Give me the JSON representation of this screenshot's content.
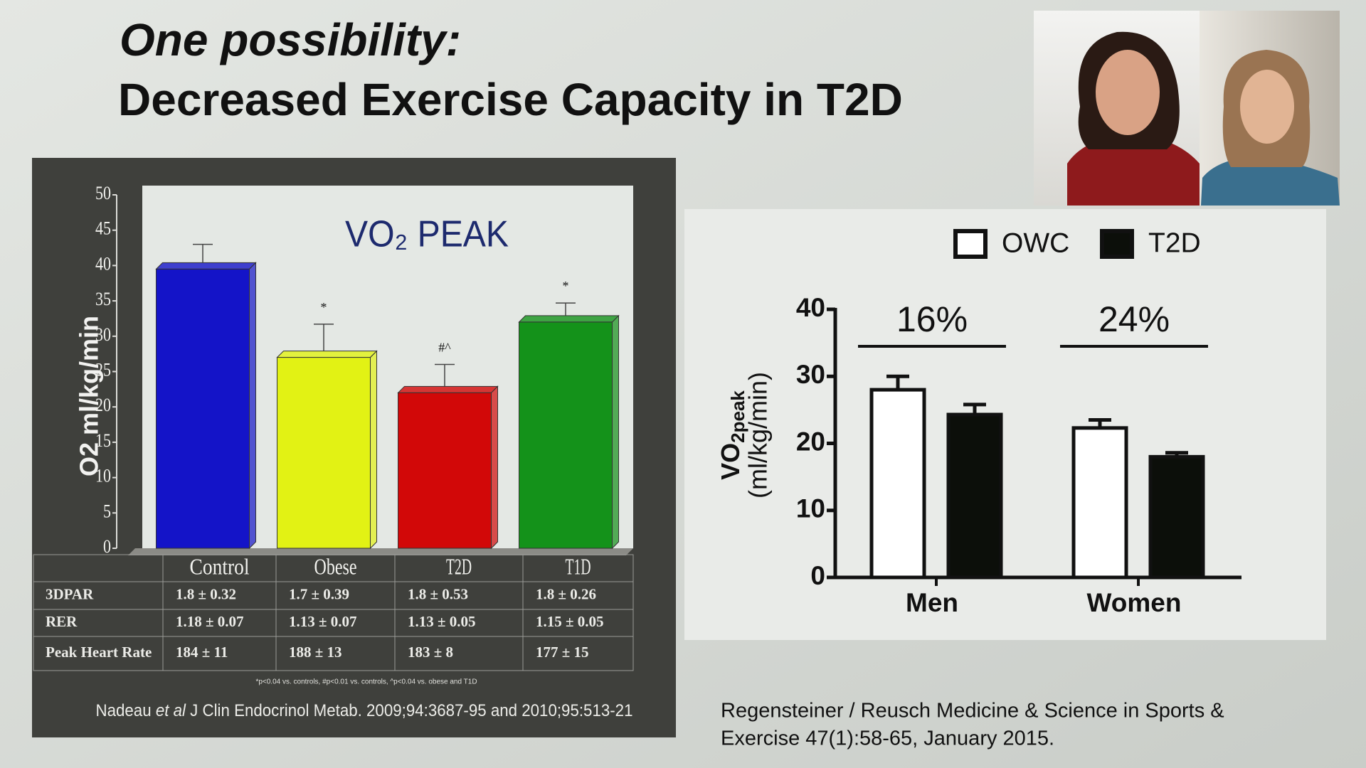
{
  "title": [
    "One possibility:",
    "Decreased Exercise Capacity in T2D"
  ],
  "chart_data": [
    {
      "type": "bar3d",
      "title": "VO₂ PEAK",
      "y_label": "O2 ml/kg/min",
      "categories": [
        "Control",
        "Obese",
        "T2D",
        "T1D"
      ],
      "values": [
        39.5,
        27,
        22,
        32
      ],
      "errors": [
        3.5,
        4.7,
        4,
        2.7
      ],
      "colors": [
        "#1414c8",
        "#e2f214",
        "#d20808",
        "#14921a"
      ],
      "annotations": [
        null,
        "*",
        "#^",
        "*"
      ],
      "ylim": [
        0,
        50
      ],
      "yticks": [
        0,
        5,
        10,
        15,
        20,
        25,
        30,
        35,
        40,
        45,
        50
      ]
    },
    {
      "type": "grouped_bar",
      "y_label": [
        "VO",
        "2peak",
        "(ml/kg/min)"
      ],
      "categories": [
        "Men",
        "Women"
      ],
      "series": [
        {
          "name": "OWC",
          "color": "#ffffff",
          "values": [
            28,
            22.3
          ],
          "errors": [
            2,
            1.2
          ]
        },
        {
          "name": "T2D",
          "color": "#0c0f0a",
          "values": [
            24.3,
            18
          ],
          "errors": [
            1.5,
            0.6
          ]
        }
      ],
      "annotations": [
        "16%",
        "24%"
      ],
      "ylim": [
        0,
        40
      ],
      "yticks": [
        0,
        10,
        20,
        30,
        40
      ],
      "legend": "top"
    }
  ],
  "table": {
    "rows": [
      [
        "3DPAR",
        "1.8 ± 0.32",
        "1.7 ± 0.39",
        "1.8 ± 0.53",
        "1.8 ± 0.26"
      ],
      [
        "RER",
        "1.18 ± 0.07",
        "1.13 ± 0.07",
        "1.13 ± 0.05",
        "1.15 ± 0.05"
      ],
      [
        "Peak Heart Rate",
        "184 ± 11",
        "188 ± 13",
        "183 ± 8",
        "177 ± 15"
      ]
    ],
    "footnote": "*p<0.04 vs. controls, #p<0.01 vs. controls, ^p<0.04 vs. obese and T1D"
  },
  "citation_left": [
    "Nadeau",
    "et al",
    "J Clin Endocrinol Metab. 2009;94:3687-95 and  2010;95:513-21"
  ],
  "citation_right": [
    "Regensteiner / Reusch Medicine & Science in Sports &",
    "Exercise 47(1):58-65, January 2015."
  ]
}
